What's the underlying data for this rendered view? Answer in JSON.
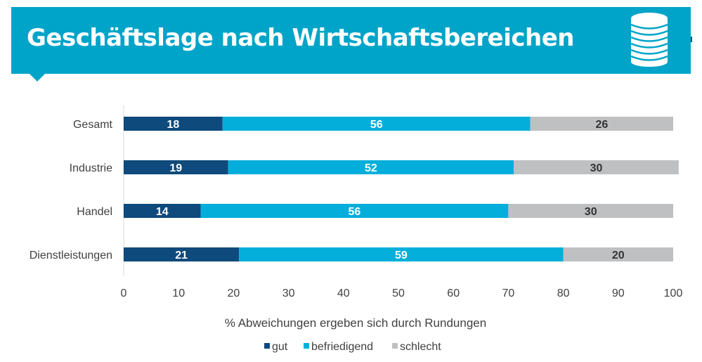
{
  "header": {
    "title": "Geschäftslage nach Wirtschaftsbereichen",
    "icon": "database-coins-icon",
    "accent_color": "#00a4c8"
  },
  "chart_data": {
    "type": "bar",
    "orientation": "horizontal",
    "stacked": true,
    "title": "Geschäftslage nach Wirtschaftsbereichen",
    "categories": [
      "Gesamt",
      "Industrie",
      "Handel",
      "Dienstleistungen"
    ],
    "series": [
      {
        "name": "gut",
        "color": "#0e4a7b",
        "label_color": "#ffffff",
        "values": [
          18,
          19,
          14,
          21
        ]
      },
      {
        "name": "befriedigend",
        "color": "#04aedb",
        "label_color": "#ffffff",
        "values": [
          56,
          52,
          56,
          59
        ]
      },
      {
        "name": "schlecht",
        "color": "#bfc0c2",
        "label_color": "#333333",
        "values": [
          26,
          30,
          30,
          20
        ]
      }
    ],
    "xlabel": "% Abweichungen ergeben sich durch Rundungen",
    "ylabel": "",
    "xlim": [
      0,
      100
    ],
    "xticks": [
      0,
      10,
      20,
      30,
      40,
      50,
      60,
      70,
      80,
      90,
      100
    ],
    "grid": false,
    "legend": {
      "position": "bottom",
      "entries": [
        "gut",
        "befriedigend",
        "schlecht"
      ]
    }
  }
}
